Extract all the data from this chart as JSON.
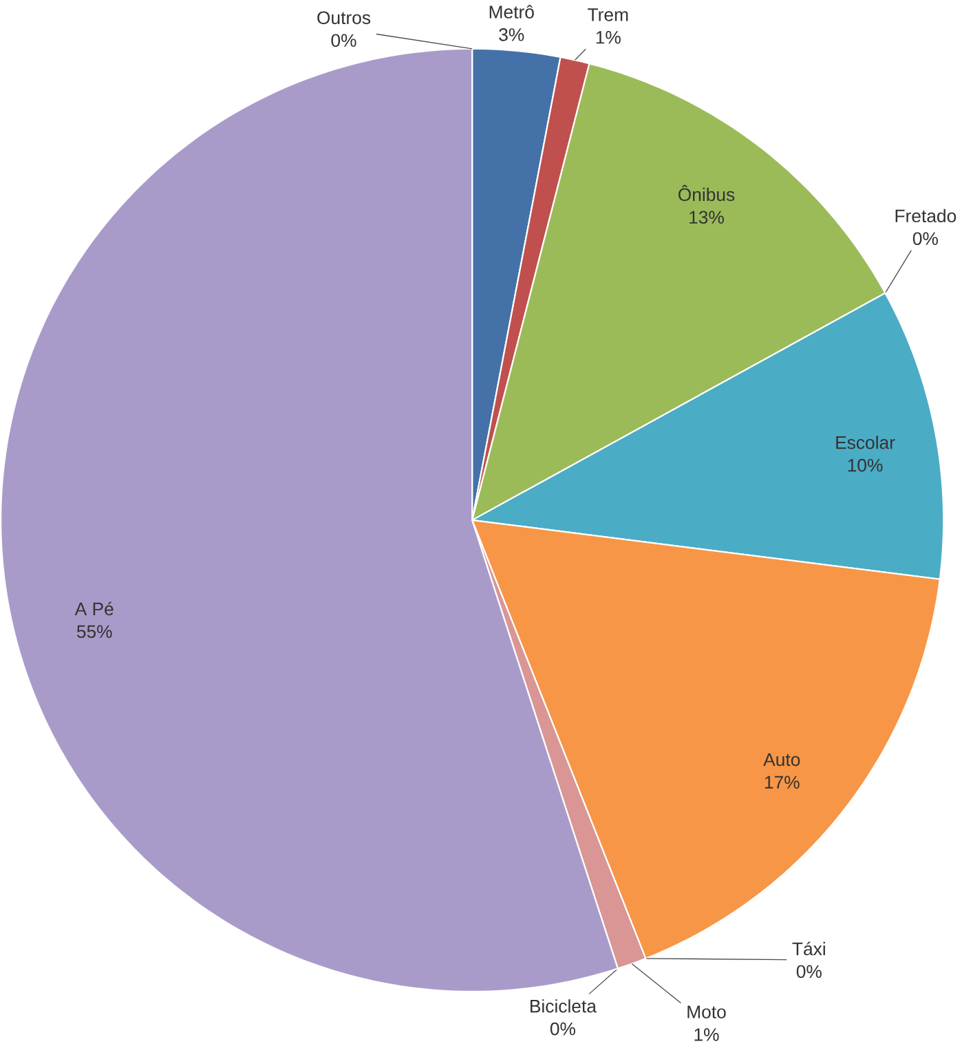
{
  "chart_data": {
    "type": "pie",
    "categories": [
      "Metrô",
      "Trem",
      "Ônibus",
      "Fretado",
      "Escolar",
      "Auto",
      "Táxi",
      "Moto",
      "Bicicleta",
      "A Pé",
      "Outros"
    ],
    "values": [
      3,
      1,
      13,
      0,
      10,
      17,
      0,
      1,
      0,
      55,
      0
    ],
    "colors": [
      "#4472a8",
      "#c0504d",
      "#9bbb59",
      "#8064a2",
      "#4bacc6",
      "#f79646",
      "#95b3d7",
      "#d99694",
      "#c3d69b",
      "#a99bc9",
      "#7f7f7f"
    ],
    "value_labels": [
      "3%",
      "1%",
      "13%",
      "0%",
      "10%",
      "17%",
      "0%",
      "1%",
      "0%",
      "55%",
      "0%"
    ]
  }
}
